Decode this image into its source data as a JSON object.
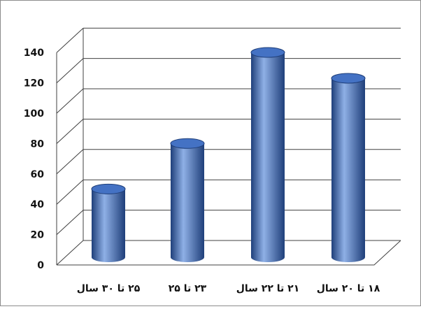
{
  "chart_data": {
    "type": "bar",
    "categories": [
      "۲۵ تا ۳۰ سال",
      "۲۳ تا ۲۵",
      "۲۱ تا ۲۲ سال",
      "۱۸ تا ۲۰ سال"
    ],
    "values": [
      45,
      75,
      135,
      118
    ],
    "yticks": [
      "0",
      "20",
      "40",
      "60",
      "80",
      "100",
      "120",
      "140"
    ],
    "ylim": [
      0,
      140
    ],
    "grid": true,
    "bar_style": "3d-cylinder",
    "colors": {
      "bar": "#4472c4",
      "bar_dark": "#1f3f7a",
      "bar_light": "#8fb0e6",
      "gridline": "#404040"
    },
    "title": "",
    "xlabel": "",
    "ylabel": ""
  }
}
